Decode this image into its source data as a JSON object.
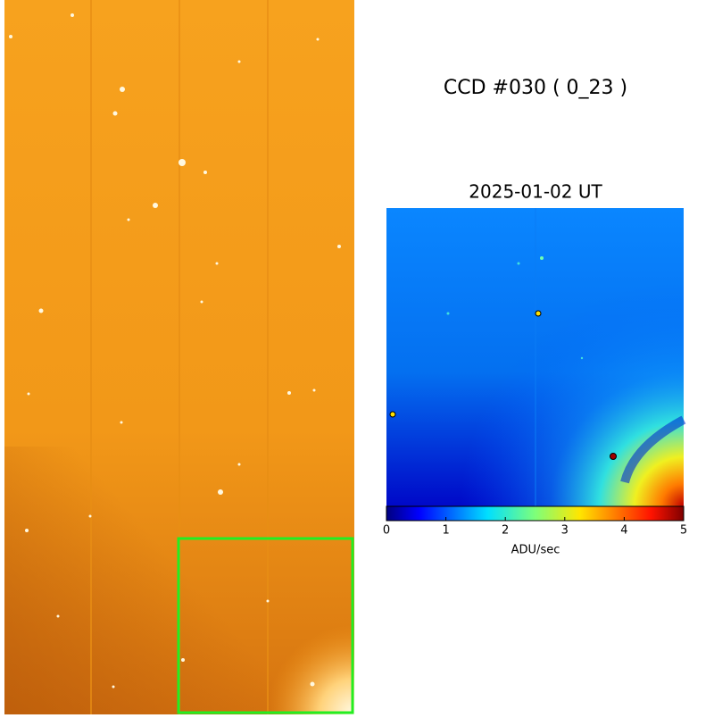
{
  "header": {
    "title": "CCD #030 ( 0_23 )"
  },
  "panel": {
    "subtitle": "2025-01-02 UT"
  },
  "colorbar": {
    "label": "ADU/sec",
    "lim": [
      0,
      5
    ],
    "ticks": [
      0,
      1,
      2,
      3,
      4,
      5
    ]
  }
}
